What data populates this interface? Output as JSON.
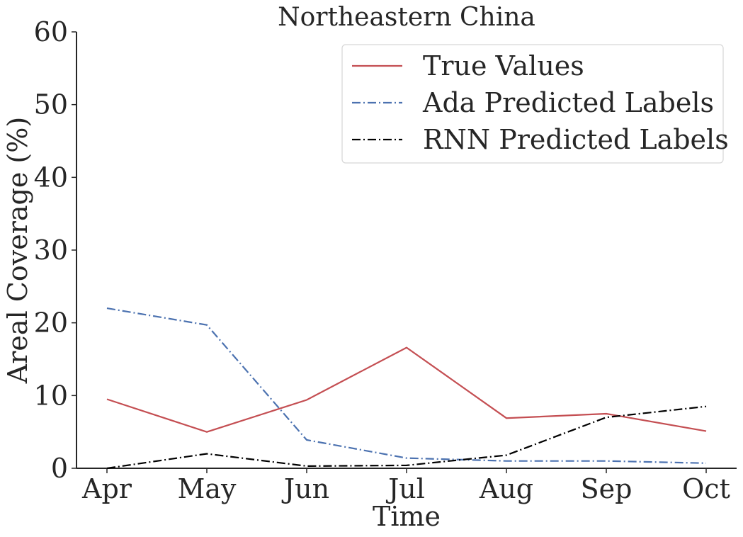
{
  "chart_data": {
    "type": "line",
    "title": "Northeastern China",
    "xlabel": "Time",
    "ylabel": "Areal Coverage (%)",
    "categories": [
      "Apr",
      "May",
      "Jun",
      "Jul",
      "Aug",
      "Sep",
      "Oct"
    ],
    "ylim": [
      0,
      60
    ],
    "yticks": [
      0,
      10,
      20,
      30,
      40,
      50,
      60
    ],
    "grid": false,
    "legend_position": "top-right",
    "series": [
      {
        "name": "True Values",
        "values": [
          9.5,
          5.0,
          9.4,
          16.6,
          6.9,
          7.5,
          5.1
        ],
        "color": "#c44e52",
        "dash": "solid"
      },
      {
        "name": "Ada Predicted Labels",
        "values": [
          22.0,
          19.7,
          3.9,
          1.4,
          1.0,
          1.0,
          0.7
        ],
        "color": "#4c72b0",
        "dash": "dashdot"
      },
      {
        "name": "RNN Predicted Labels",
        "values": [
          0.0,
          2.0,
          0.3,
          0.4,
          1.8,
          7.0,
          8.5
        ],
        "color": "#000000",
        "dash": "dashdot"
      }
    ]
  }
}
